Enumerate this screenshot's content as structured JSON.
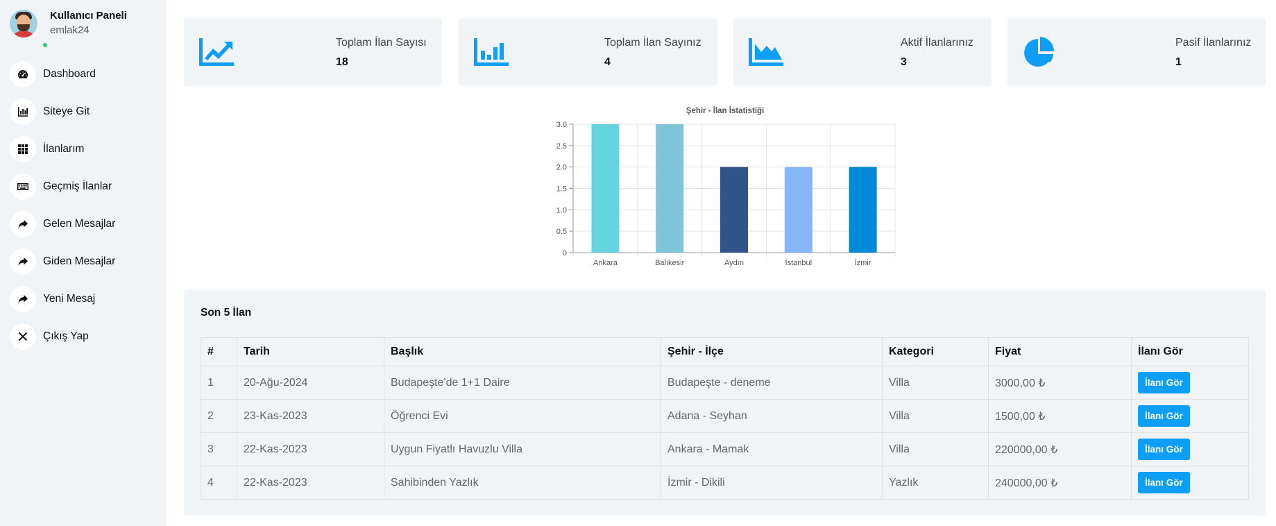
{
  "profile": {
    "title": "Kullanıcı Paneli",
    "username": "emlak24"
  },
  "nav": [
    {
      "label": "Dashboard",
      "icon": "speedometer-icon"
    },
    {
      "label": "Siteye Git",
      "icon": "bar-chart-icon"
    },
    {
      "label": "İlanlarım",
      "icon": "grid-icon"
    },
    {
      "label": "Geçmiş İlanlar",
      "icon": "keyboard-icon"
    },
    {
      "label": "Gelen Mesajlar",
      "icon": "share-arrow-icon"
    },
    {
      "label": "Giden Mesajlar",
      "icon": "share-arrow-icon"
    },
    {
      "label": "Yeni Mesaj",
      "icon": "share-arrow-icon"
    },
    {
      "label": "Çıkış Yap",
      "icon": "close-icon"
    }
  ],
  "cards": [
    {
      "label": "Toplam İlan Sayısı",
      "value": "18",
      "icon": "trending-up-chart-icon"
    },
    {
      "label": "Toplam İlan Sayınız",
      "value": "4",
      "icon": "bar-chart-icon"
    },
    {
      "label": "Aktif İlanlarınız",
      "value": "3",
      "icon": "area-chart-icon"
    },
    {
      "label": "Pasif İlanlarınız",
      "value": "1",
      "icon": "pie-chart-icon"
    }
  ],
  "accent_color": "#0d9ef7",
  "chart_data": {
    "type": "bar",
    "title": "Şehir - İlan İstatistiği",
    "categories": [
      "Ankara",
      "Balıkesir",
      "Aydın",
      "İstanbul",
      "İzmir"
    ],
    "values": [
      3,
      3,
      2,
      2,
      2
    ],
    "colors": [
      "#66d4de",
      "#7fc4d8",
      "#33548a",
      "#86b6f8",
      "#0088d9"
    ],
    "ylim": [
      0,
      3
    ],
    "yticks": [
      "0",
      "0.5",
      "1.0",
      "1.5",
      "2.0",
      "2.5",
      "3.0"
    ],
    "grid": true
  },
  "recent": {
    "title": "Son 5 İlan",
    "headers": [
      "#",
      "Tarih",
      "Başlık",
      "Şehir - İlçe",
      "Kategori",
      "Fiyat",
      "İlanı Gör"
    ],
    "button_label": "İlanı Gör",
    "rows": [
      [
        "1",
        "20-Ağu-2024",
        "Budapeşte'de 1+1 Daire",
        "Budapeşte - deneme",
        "Villa",
        "3000,00 ₺"
      ],
      [
        "2",
        "23-Kas-2023",
        "Öğrenci Evi",
        "Adana - Seyhan",
        "Villa",
        "1500,00 ₺"
      ],
      [
        "3",
        "22-Kas-2023",
        "Uygun Fiyatlı Havuzlu Villa",
        "Ankara - Mamak",
        "Villa",
        "220000,00 ₺"
      ],
      [
        "4",
        "22-Kas-2023",
        "Sahibinden Yazlık",
        "İzmir - Dikili",
        "Yazlık",
        "240000,00 ₺"
      ]
    ]
  }
}
